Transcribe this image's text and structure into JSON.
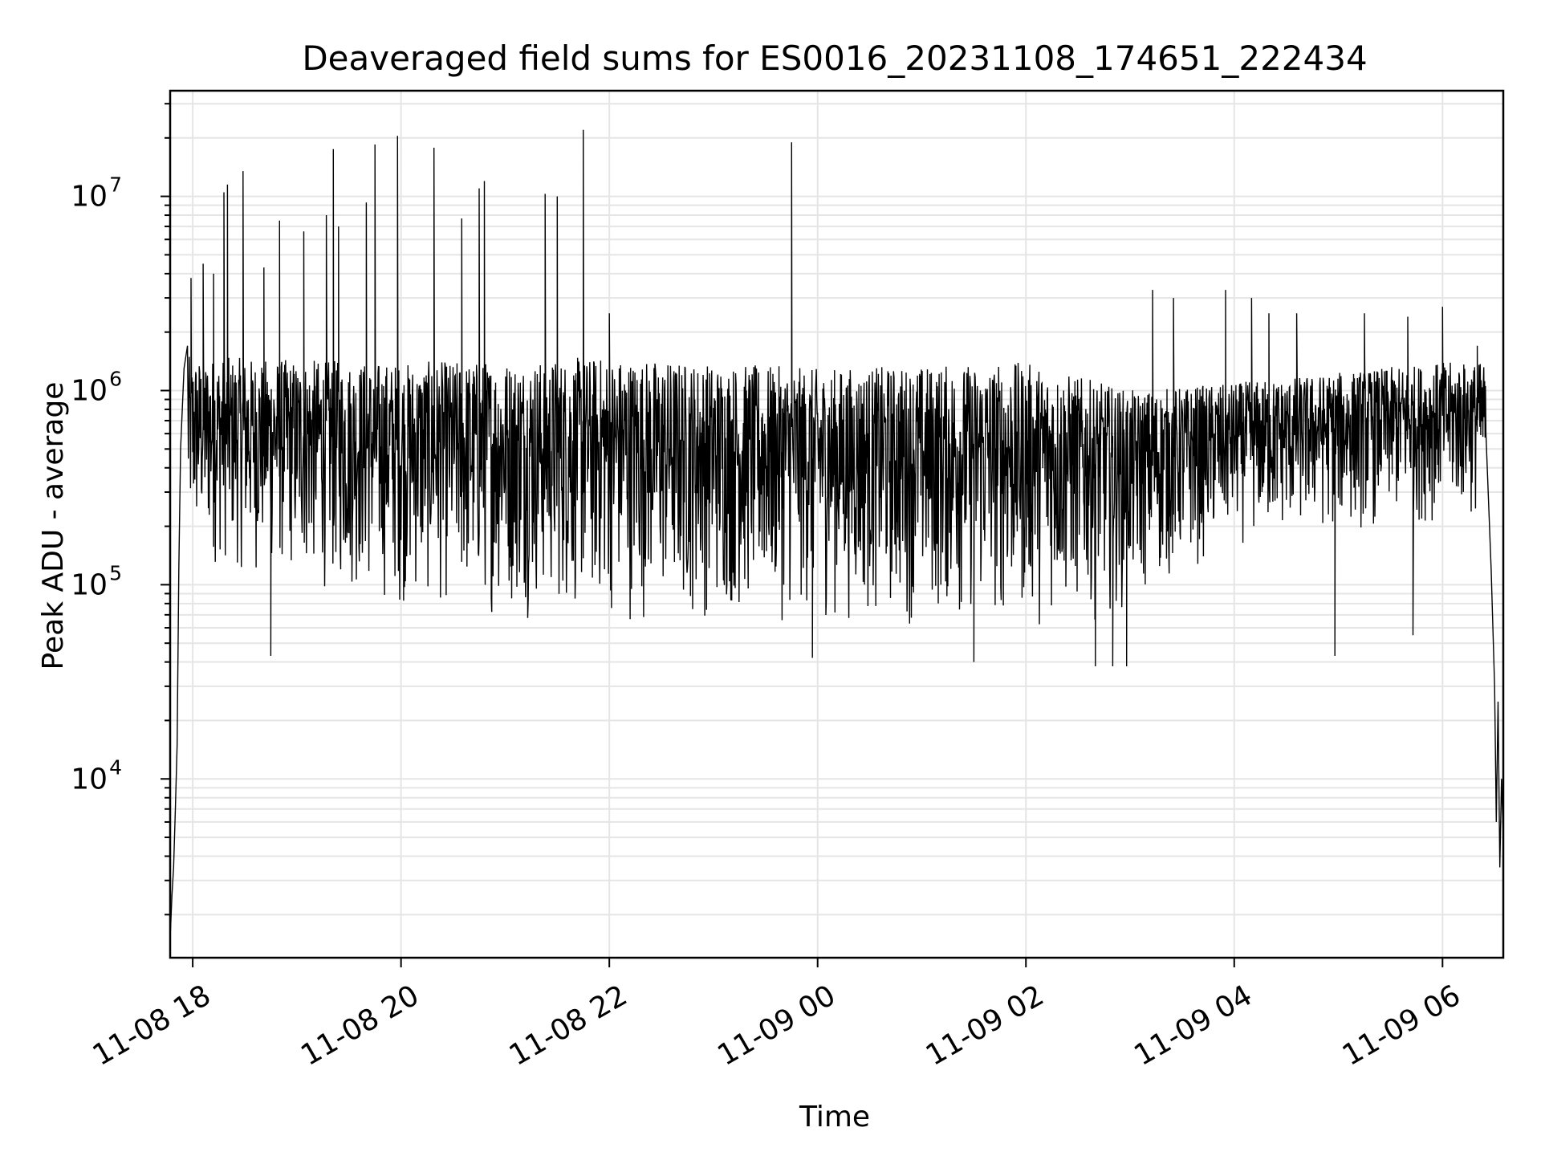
{
  "chart_data": {
    "type": "line",
    "title": "Deaveraged field sums for ES0016_20231108_174651_222434",
    "xlabel": "Time",
    "ylabel": "Peak ADU - average",
    "yscale": "log",
    "grid": true,
    "xlim": [
      "2023-11-08 17:47",
      "2023-11-09 06:35"
    ],
    "ylim": [
      1200,
      35000000
    ],
    "x_ticks": [
      {
        "t": "2023-11-08 18:00",
        "label": "11-08 18"
      },
      {
        "t": "2023-11-08 20:00",
        "label": "11-08 20"
      },
      {
        "t": "2023-11-08 22:00",
        "label": "11-08 22"
      },
      {
        "t": "2023-11-09 00:00",
        "label": "11-09 00"
      },
      {
        "t": "2023-11-09 02:00",
        "label": "11-09 02"
      },
      {
        "t": "2023-11-09 04:00",
        "label": "11-09 04"
      },
      {
        "t": "2023-11-09 06:00",
        "label": "11-09 06"
      }
    ],
    "y_ticks": [
      {
        "value": 10000,
        "base": "10",
        "exp": "4"
      },
      {
        "value": 100000,
        "base": "10",
        "exp": "5"
      },
      {
        "value": 1000000,
        "base": "10",
        "exp": "6"
      },
      {
        "value": 10000000,
        "base": "10",
        "exp": "7"
      }
    ],
    "series": [
      {
        "color": "#000000",
        "typical_upper_envelope": [
          {
            "t": "2023-11-08 18:00",
            "y": 1500000
          },
          {
            "t": "2023-11-08 20:00",
            "y": 1400000
          },
          {
            "t": "2023-11-08 22:00",
            "y": 1500000
          },
          {
            "t": "2023-11-09 00:00",
            "y": 1300000
          },
          {
            "t": "2023-11-09 02:00",
            "y": 1400000
          },
          {
            "t": "2023-11-09 03:00",
            "y": 1000000
          },
          {
            "t": "2023-11-09 04:00",
            "y": 1100000
          },
          {
            "t": "2023-11-09 06:00",
            "y": 1400000
          }
        ],
        "typical_lower_envelope": [
          {
            "t": "2023-11-08 18:00",
            "y": 120000
          },
          {
            "t": "2023-11-08 20:00",
            "y": 70000
          },
          {
            "t": "2023-11-08 22:00",
            "y": 60000
          },
          {
            "t": "2023-11-09 00:00",
            "y": 60000
          },
          {
            "t": "2023-11-09 02:00",
            "y": 55000
          },
          {
            "t": "2023-11-09 03:00",
            "y": 70000
          },
          {
            "t": "2023-11-09 04:00",
            "y": 150000
          },
          {
            "t": "2023-11-09 06:00",
            "y": 200000
          }
        ],
        "start_ramp": [
          {
            "t": "2023-11-08 17:47",
            "y": 1500
          },
          {
            "t": "2023-11-08 17:48",
            "y": 2500
          },
          {
            "t": "2023-11-08 17:49",
            "y": 3500
          },
          {
            "t": "2023-11-08 17:50",
            "y": 7000
          },
          {
            "t": "2023-11-08 17:51",
            "y": 15000
          },
          {
            "t": "2023-11-08 17:52",
            "y": 120000
          },
          {
            "t": "2023-11-08 17:53",
            "y": 500000
          },
          {
            "t": "2023-11-08 17:55",
            "y": 1300000
          },
          {
            "t": "2023-11-08 17:57",
            "y": 1700000
          }
        ],
        "end_drop": [
          {
            "t": "2023-11-09 06:25",
            "y": 600000
          },
          {
            "t": "2023-11-09 06:28",
            "y": 120000
          },
          {
            "t": "2023-11-09 06:30",
            "y": 30000
          },
          {
            "t": "2023-11-09 06:31",
            "y": 6000
          },
          {
            "t": "2023-11-09 06:32",
            "y": 25000
          },
          {
            "t": "2023-11-09 06:33",
            "y": 3500
          },
          {
            "t": "2023-11-09 06:34",
            "y": 10000
          },
          {
            "t": "2023-11-09 06:35",
            "y": 5000
          }
        ],
        "spikes": [
          {
            "t": "2023-11-08 17:59",
            "y": 3800000
          },
          {
            "t": "2023-11-08 18:06",
            "y": 4500000
          },
          {
            "t": "2023-11-08 18:12",
            "y": 4000000
          },
          {
            "t": "2023-11-08 18:18",
            "y": 10500000
          },
          {
            "t": "2023-11-08 18:20",
            "y": 11500000
          },
          {
            "t": "2023-11-08 18:29",
            "y": 13500000
          },
          {
            "t": "2023-11-08 18:41",
            "y": 4300000
          },
          {
            "t": "2023-11-08 18:50",
            "y": 7500000
          },
          {
            "t": "2023-11-08 19:04",
            "y": 6600000
          },
          {
            "t": "2023-11-08 19:17",
            "y": 8000000
          },
          {
            "t": "2023-11-08 19:21",
            "y": 17500000
          },
          {
            "t": "2023-11-08 19:24",
            "y": 7000000
          },
          {
            "t": "2023-11-08 19:40",
            "y": 9300000
          },
          {
            "t": "2023-11-08 19:45",
            "y": 18500000
          },
          {
            "t": "2023-11-08 19:58",
            "y": 20500000
          },
          {
            "t": "2023-11-08 20:19",
            "y": 17800000
          },
          {
            "t": "2023-11-08 20:35",
            "y": 7700000
          },
          {
            "t": "2023-11-08 20:45",
            "y": 11000000
          },
          {
            "t": "2023-11-08 20:48",
            "y": 12000000
          },
          {
            "t": "2023-11-08 21:23",
            "y": 10300000
          },
          {
            "t": "2023-11-08 21:30",
            "y": 10000000
          },
          {
            "t": "2023-11-08 21:45",
            "y": 22000000
          },
          {
            "t": "2023-11-08 22:00",
            "y": 2500000
          },
          {
            "t": "2023-11-08 23:45",
            "y": 19000000
          },
          {
            "t": "2023-11-09 03:13",
            "y": 3300000
          },
          {
            "t": "2023-11-09 03:25",
            "y": 3000000
          },
          {
            "t": "2023-11-09 03:55",
            "y": 3300000
          },
          {
            "t": "2023-11-09 04:10",
            "y": 3000000
          },
          {
            "t": "2023-11-09 04:20",
            "y": 2500000
          },
          {
            "t": "2023-11-09 04:36",
            "y": 2500000
          },
          {
            "t": "2023-11-09 05:15",
            "y": 2500000
          },
          {
            "t": "2023-11-09 05:40",
            "y": 2400000
          },
          {
            "t": "2023-11-09 06:00",
            "y": 2700000
          },
          {
            "t": "2023-11-09 06:20",
            "y": 1700000
          }
        ],
        "dips": [
          {
            "t": "2023-11-08 18:45",
            "y": 43000
          },
          {
            "t": "2023-11-08 23:57",
            "y": 42000
          },
          {
            "t": "2023-11-09 01:30",
            "y": 40000
          },
          {
            "t": "2023-11-09 02:40",
            "y": 38000
          },
          {
            "t": "2023-11-09 02:50",
            "y": 38000
          },
          {
            "t": "2023-11-09 02:58",
            "y": 38000
          },
          {
            "t": "2023-11-09 04:58",
            "y": 43000
          },
          {
            "t": "2023-11-09 05:43",
            "y": 55000
          }
        ]
      }
    ]
  }
}
